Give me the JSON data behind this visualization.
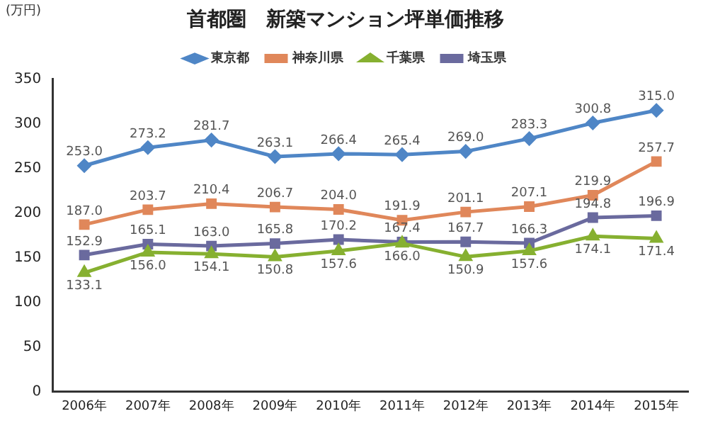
{
  "chart_data": {
    "type": "line",
    "title": "首都圏　新築マンション坪単価推移",
    "ylabel": "(万円)",
    "categories": [
      "2006年",
      "2007年",
      "2008年",
      "2009年",
      "2010年",
      "2011年",
      "2012年",
      "2013年",
      "2014年",
      "2015年"
    ],
    "series": [
      {
        "name": "東京都",
        "color": "#4f86c6",
        "marker": "diamond",
        "values": [
          253.0,
          273.2,
          281.7,
          263.1,
          266.4,
          265.4,
          269.0,
          283.3,
          300.8,
          315.0
        ],
        "value_labels": [
          "253.0",
          "273.2",
          "281.7",
          "263.1",
          "266.4",
          "265.4",
          "269.0",
          "283.3",
          "300.8",
          "315.0"
        ]
      },
      {
        "name": "神奈川県",
        "color": "#e0875a",
        "marker": "square",
        "values": [
          187.0,
          203.7,
          210.4,
          206.7,
          204.0,
          191.9,
          201.1,
          207.1,
          219.9,
          257.7
        ],
        "value_labels": [
          "187.0",
          "203.7",
          "210.4",
          "206.7",
          "204.0",
          "191.9",
          "201.1",
          "207.1",
          "219.9",
          "257.7"
        ]
      },
      {
        "name": "千葉県",
        "color": "#86b030",
        "marker": "triangle",
        "values": [
          133.1,
          156.0,
          154.1,
          150.8,
          157.6,
          166.0,
          150.9,
          157.6,
          174.1,
          171.4
        ],
        "value_labels": [
          "133.1",
          "156.0",
          "154.1",
          "150.8",
          "157.6",
          "166.0",
          "150.9",
          "157.6",
          "174.1",
          "171.4"
        ]
      },
      {
        "name": "埼玉県",
        "color": "#6a6a9e",
        "marker": "square",
        "values": [
          152.9,
          165.1,
          163.0,
          165.8,
          170.2,
          167.4,
          167.7,
          166.3,
          194.8,
          196.9
        ],
        "value_labels": [
          "152.9",
          "165.1",
          "163.0",
          "165.8",
          "170.2",
          "167.4",
          "167.7",
          "166.3",
          "194.8",
          "196.9"
        ]
      }
    ],
    "ylim": [
      0,
      350
    ],
    "yticks": [
      0,
      50,
      100,
      150,
      200,
      250,
      300,
      350
    ],
    "grid": false,
    "legend": "top"
  }
}
